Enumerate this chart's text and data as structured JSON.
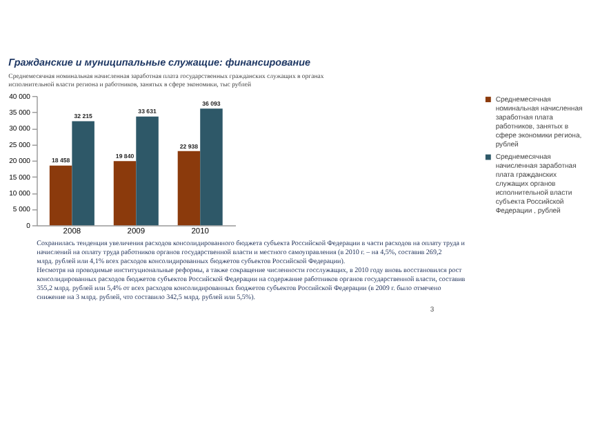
{
  "chart_data": {
    "type": "bar",
    "title": "Гражданские и муниципальные служащие: финансирование",
    "subtitle": "Среднемесячная номинальная начисленная заработная плата государственных гражданских служащих в органах исполнительной власти региона и работников, занятых в сфере экономики, тыс рублей",
    "categories": [
      "2008",
      "2009",
      "2010"
    ],
    "series": [
      {
        "name": "Среднемесячная номинальная начисленная заработная плата работников, занятых в сфере экономики региона, рублей",
        "color": "#8b3a0c",
        "values": [
          18458,
          19840,
          22938
        ],
        "value_labels": [
          "18 458",
          "19 840",
          "22 938"
        ]
      },
      {
        "name": "Среднемесячная начисленная заработная плата гражданских служащих органов исполнительной власти субъекта Российской Федерации , рублей",
        "color": "#2e5868",
        "values": [
          32215,
          33631,
          36093
        ],
        "value_labels": [
          "32 215",
          "33 631",
          "36 093"
        ]
      }
    ],
    "ylim": [
      0,
      40000
    ],
    "yticks": [
      {
        "value": 0,
        "label": "0"
      },
      {
        "value": 5000,
        "label": "5 000"
      },
      {
        "value": 10000,
        "label": "10 000"
      },
      {
        "value": 15000,
        "label": "15 000"
      },
      {
        "value": 20000,
        "label": "20 000"
      },
      {
        "value": 25000,
        "label": "25 000"
      },
      {
        "value": 30000,
        "label": "30 000"
      },
      {
        "value": 35000,
        "label": "35 000"
      },
      {
        "value": 40000,
        "label": "40 000"
      }
    ],
    "grid": false,
    "legend": "right",
    "annotations": [
      "Сохранилась тенденция увеличения расходов консолидированного бюджета субъекта Российской Федерации в части расходов на оплату труда и начислений на оплату труда работников органов государственной власти и местного самоуправления (в 2010 г. – на 4,5%, составив 269,2 млрд. рублей или 4,1% всех расходов консолидированных бюджетов субъектов Российской Федерации).",
      "Несмотря на проводимые институциональные реформы, а также сокращение численности госслужащих, в 2010 году вновь восстановился рост консолидированных расходов бюджетов субъектов Российской Федерации на содержание работников органов государственной власти, составив 355,2 млрд. рублей или 5,4% от всех расходов консолидированных бюджетов субъектов Российской Федерации (в 2009 г. было отмечено снижение на 3 млрд. рублей, что составило 342,5 млрд. рублей или 5,5%).",
      "3"
    ]
  }
}
